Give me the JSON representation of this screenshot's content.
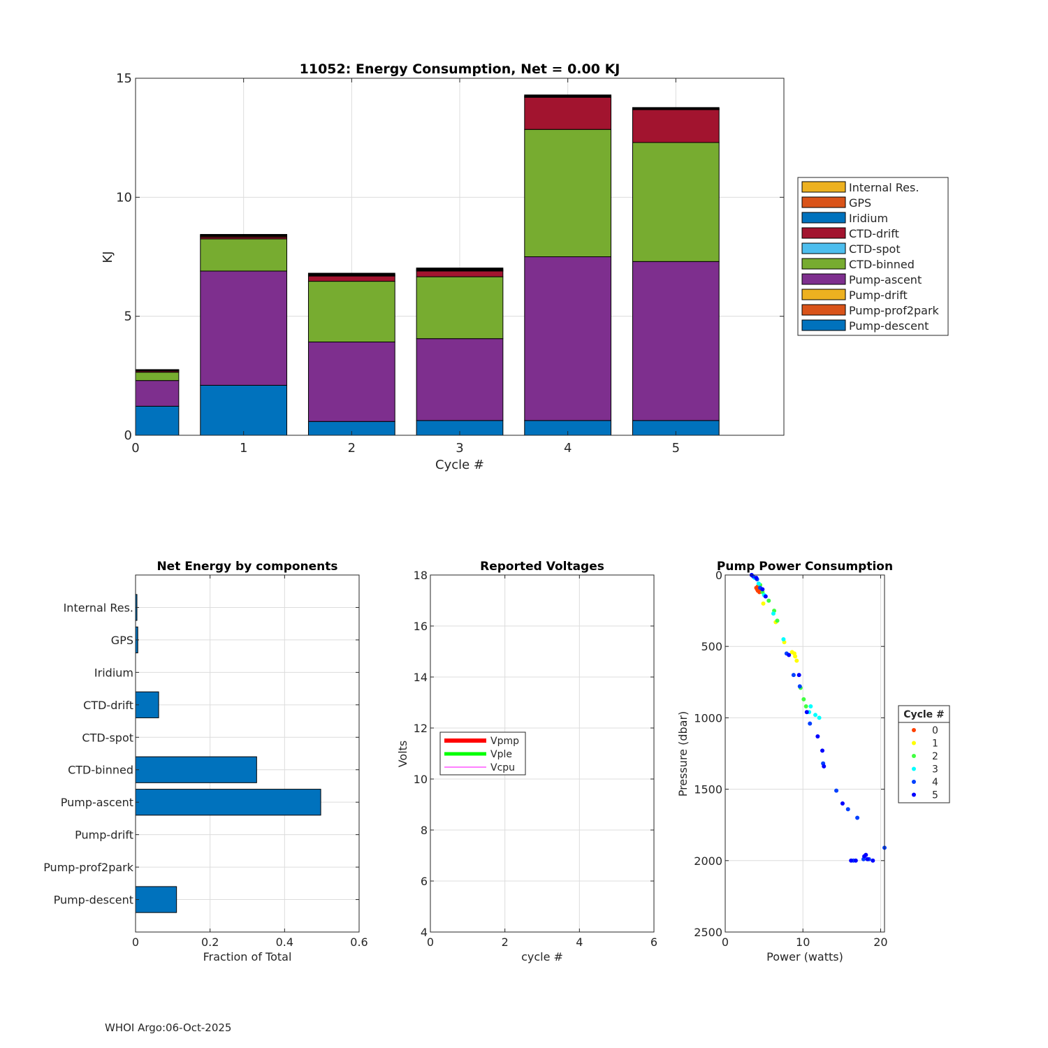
{
  "footer": "WHOI Argo:06-Oct-2025",
  "chart_data": [
    {
      "type": "bar",
      "stacked": true,
      "title": "11052: Energy Consumption,  Net =   0.00 KJ",
      "xlabel": "Cycle #",
      "ylabel": "KJ",
      "xlim": [
        0,
        6
      ],
      "ylim": [
        0,
        15
      ],
      "xticks": [
        "0",
        "1",
        "2",
        "3",
        "4",
        "5"
      ],
      "yticks": [
        "0",
        "5",
        "10",
        "15"
      ],
      "categories": [
        "0",
        "1",
        "2",
        "3",
        "4",
        "5"
      ],
      "legend_position": "right",
      "series": [
        {
          "name": "Pump-descent",
          "color": "#0072bd",
          "values": [
            1.22,
            2.1,
            0.58,
            0.62,
            0.62,
            0.62
          ]
        },
        {
          "name": "Pump-prof2park",
          "color": "#d95319",
          "values": [
            0,
            0,
            0,
            0,
            0,
            0
          ]
        },
        {
          "name": "Pump-drift",
          "color": "#edb120",
          "values": [
            0,
            0,
            0,
            0,
            0,
            0
          ]
        },
        {
          "name": "Pump-ascent",
          "color": "#7e2f8e",
          "values": [
            1.08,
            4.8,
            3.34,
            3.44,
            6.88,
            6.68
          ]
        },
        {
          "name": "CTD-binned",
          "color": "#77ac30",
          "values": [
            0.35,
            1.35,
            2.55,
            2.6,
            5.35,
            5.0
          ]
        },
        {
          "name": "CTD-spot",
          "color": "#4dbeee",
          "values": [
            0,
            0,
            0,
            0,
            0,
            0
          ]
        },
        {
          "name": "CTD-drift",
          "color": "#a2142f",
          "values": [
            0.05,
            0.07,
            0.22,
            0.24,
            1.35,
            1.38
          ]
        },
        {
          "name": "Iridium",
          "color": "#0072bd",
          "values": [
            0,
            0,
            0,
            0,
            0,
            0
          ]
        },
        {
          "name": "GPS",
          "color": "#d95319",
          "values": [
            0.02,
            0.04,
            0.03,
            0.03,
            0.02,
            0.02
          ]
        },
        {
          "name": "Internal Res.",
          "color": "#edb120",
          "values": [
            0.02,
            0.03,
            0.03,
            0.03,
            0.02,
            0.02
          ]
        }
      ],
      "cap_values": [
        0.02,
        0.05,
        0.06,
        0.07,
        0.06,
        0.05
      ],
      "cap_color": "#000000"
    },
    {
      "type": "bar",
      "orientation": "horizontal",
      "title": "Net Energy by components",
      "xlabel": "Fraction of Total",
      "xlim": [
        0,
        0.6
      ],
      "xticks": [
        "0",
        "0.2",
        "0.4",
        "0.6"
      ],
      "categories": [
        "Internal Res.",
        "GPS",
        "Iridium",
        "CTD-drift",
        "CTD-spot",
        "CTD-binned",
        "Pump-ascent",
        "Pump-drift",
        "Pump-prof2park",
        "Pump-descent"
      ],
      "values": [
        0.003,
        0.006,
        0,
        0.062,
        0,
        0.325,
        0.497,
        0,
        0,
        0.11
      ],
      "color": "#0072bd"
    },
    {
      "type": "line",
      "title": "Reported Voltages",
      "xlabel": "cycle #",
      "ylabel": "Volts",
      "xlim": [
        0,
        6
      ],
      "ylim": [
        4,
        18
      ],
      "xticks": [
        "0",
        "2",
        "4",
        "6"
      ],
      "yticks": [
        "4",
        "6",
        "8",
        "10",
        "12",
        "14",
        "16",
        "18"
      ],
      "legend_position": "west",
      "series": [
        {
          "name": "Vpmp",
          "color": "#ff0000",
          "values": []
        },
        {
          "name": "Vple",
          "color": "#00ff00",
          "values": []
        },
        {
          "name": "Vcpu",
          "color": "#ff00ff",
          "values": []
        }
      ]
    },
    {
      "type": "scatter",
      "title": "Pump Power Consumption",
      "xlabel": "Power (watts)",
      "ylabel": "Pressure (dbar)",
      "xlim": [
        0,
        20.5
      ],
      "ylim": [
        0,
        2500
      ],
      "y_reversed": true,
      "xticks": [
        "0",
        "10",
        "20"
      ],
      "yticks": [
        "0",
        "500",
        "1000",
        "1500",
        "2000",
        "2500"
      ],
      "legend_title": "Cycle #",
      "series": [
        {
          "name": "0",
          "color": "#ff4000",
          "points": [
            [
              4.0,
              90
            ],
            [
              4.1,
              100
            ],
            [
              4.2,
              110
            ],
            [
              4.3,
              95
            ],
            [
              4.4,
              120
            ],
            [
              4.6,
              115
            ],
            [
              4.2,
              80
            ]
          ]
        },
        {
          "name": "1",
          "color": "#ffff00",
          "points": [
            [
              4.9,
              200
            ],
            [
              6.5,
              330
            ],
            [
              7.6,
              470
            ],
            [
              8.6,
              540
            ],
            [
              9.0,
              570
            ],
            [
              9.2,
              600
            ],
            [
              8.9,
              550
            ]
          ]
        },
        {
          "name": "2",
          "color": "#40ff40",
          "points": [
            [
              4.8,
              120
            ],
            [
              5.6,
              180
            ],
            [
              6.3,
              250
            ],
            [
              6.7,
              320
            ],
            [
              9.7,
              790
            ],
            [
              10.1,
              870
            ],
            [
              10.4,
              920
            ],
            [
              4.5,
              70
            ]
          ]
        },
        {
          "name": "3",
          "color": "#00ffff",
          "points": [
            [
              3.8,
              20
            ],
            [
              4.3,
              60
            ],
            [
              6.2,
              270
            ],
            [
              7.5,
              450
            ],
            [
              11.0,
              920
            ],
            [
              11.6,
              980
            ],
            [
              12.1,
              1000
            ],
            [
              10.8,
              960
            ],
            [
              5.0,
              140
            ]
          ]
        },
        {
          "name": "4",
          "color": "#0040ff",
          "points": [
            [
              3.6,
              10
            ],
            [
              4.1,
              30
            ],
            [
              4.5,
              90
            ],
            [
              7.9,
              550
            ],
            [
              8.8,
              700
            ],
            [
              9.6,
              780
            ],
            [
              10.9,
              1040
            ],
            [
              12.6,
              1320
            ],
            [
              14.3,
              1510
            ],
            [
              15.8,
              1640
            ],
            [
              16.5,
              2000
            ],
            [
              17.8,
              1990
            ],
            [
              18.5,
              1990
            ],
            [
              17.0,
              1700
            ],
            [
              20.5,
              1910
            ]
          ]
        },
        {
          "name": "5",
          "color": "#0000ff",
          "points": [
            [
              3.4,
              0
            ],
            [
              4.0,
              20
            ],
            [
              4.8,
              100
            ],
            [
              5.2,
              150
            ],
            [
              8.2,
              560
            ],
            [
              9.5,
              700
            ],
            [
              10.5,
              960
            ],
            [
              11.9,
              1130
            ],
            [
              12.5,
              1230
            ],
            [
              12.7,
              1340
            ],
            [
              15.1,
              1600
            ],
            [
              16.2,
              2000
            ],
            [
              16.8,
              2000
            ],
            [
              17.9,
              1970
            ],
            [
              18.3,
              1990
            ],
            [
              19.0,
              2000
            ],
            [
              18.1,
              1960
            ]
          ]
        }
      ]
    }
  ]
}
